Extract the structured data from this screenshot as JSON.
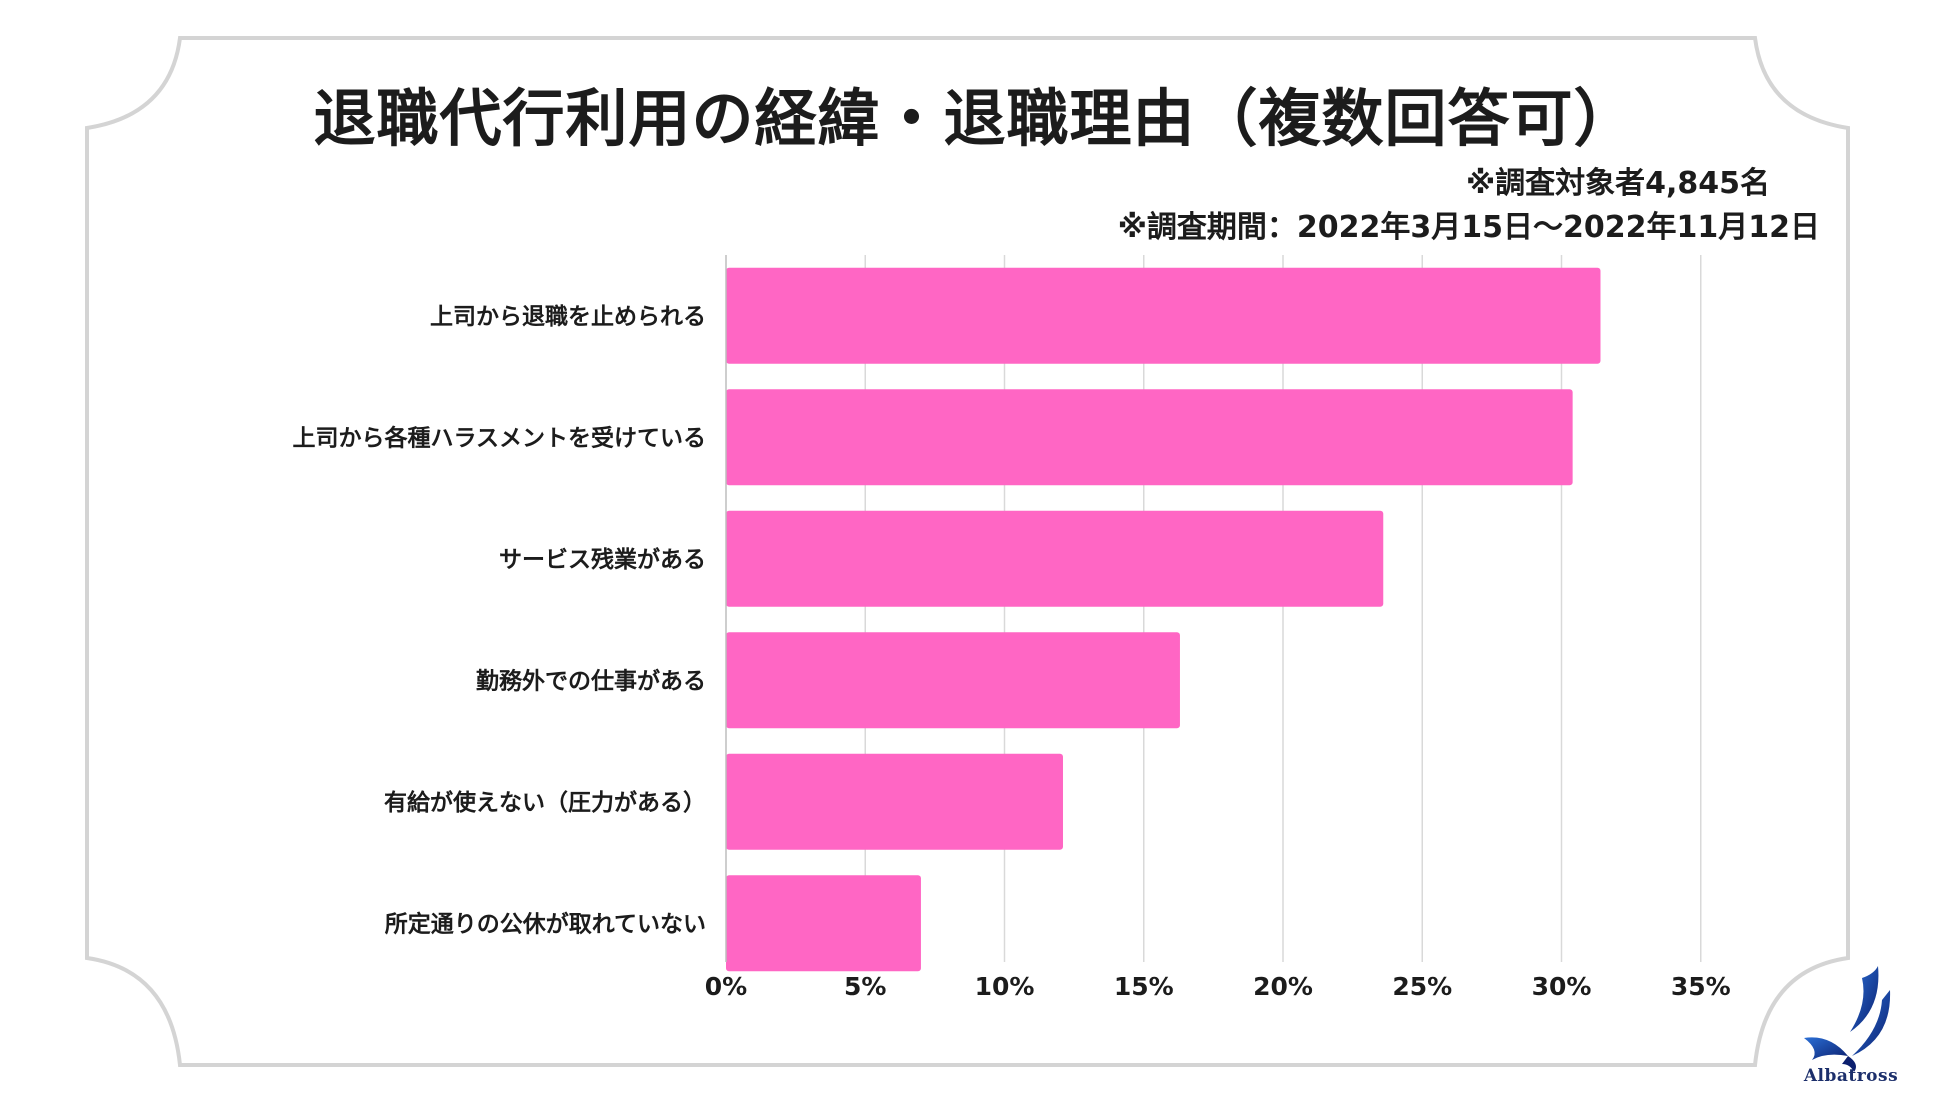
{
  "title": "退職代行利用の経緯・退職理由（複数回答可）",
  "notes": {
    "sample": "※調査対象者4,845名",
    "period": "※調査期間：2022年3月15日〜2022年11月12日"
  },
  "logo": {
    "name": "Albatross",
    "icon": "albatross-bird-icon"
  },
  "colors": {
    "bar": "#ff66c4",
    "grid": "#d9d9d9",
    "frame": "#d4d4d4"
  },
  "chart_data": {
    "type": "bar",
    "orientation": "horizontal",
    "categories": [
      "上司から退職を止められる",
      "上司から各種ハラスメントを受けている",
      "サービス残業がある",
      "勤務外での仕事がある",
      "有給が使えない（圧力がある）",
      "所定通りの公休が取れていない"
    ],
    "values": [
      31.4,
      30.4,
      23.6,
      16.3,
      12.1,
      7.0
    ],
    "xlim": [
      0,
      35
    ],
    "ticks": [
      0,
      5,
      10,
      15,
      20,
      25,
      30,
      35
    ],
    "tick_labels": [
      "0%",
      "5%",
      "10%",
      "15%",
      "20%",
      "25%",
      "30%",
      "35%"
    ],
    "grid": true
  }
}
